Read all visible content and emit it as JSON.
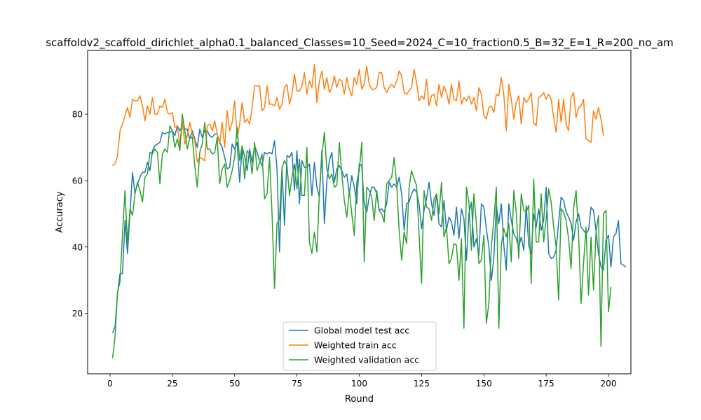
{
  "chart_data": {
    "type": "line",
    "title": "scaffoldv2_scaffold_dirichlet_alpha0.1_balanced_Classes=10_Seed=2024_C=10_fraction0.5_B=32_E=1_R=200_no_am",
    "xlabel": "Round",
    "ylabel": "Accuracy",
    "xlim": [
      -9,
      209
    ],
    "ylim": [
      1.8,
      99.2
    ],
    "xticks": [
      0,
      25,
      50,
      75,
      100,
      125,
      150,
      175,
      200
    ],
    "yticks": [
      20,
      40,
      60,
      80
    ],
    "grid": false,
    "legend_position": "lower-center",
    "x": {
      "start": 1,
      "end": 200
    },
    "series": [
      {
        "name": "Global model test acc",
        "color": "#1f77b4",
        "values": [
          14,
          16,
          26,
          32,
          32,
          48,
          38,
          50,
          62.5,
          56,
          59,
          61,
          62.5,
          62.5,
          65.5,
          63,
          69,
          70.5,
          71,
          71.5,
          74.5,
          74,
          74.5,
          74.5,
          75,
          73.5,
          76.5,
          75,
          76.5,
          75.5,
          75.5,
          72.5,
          75,
          72.5,
          70,
          75.5,
          73,
          75,
          75,
          73.5,
          73,
          74,
          74,
          71.5,
          70,
          67,
          63.5,
          64,
          71,
          69.5,
          71.5,
          59.5,
          70,
          67.5,
          63,
          69.5,
          65.5,
          70.5,
          68.5,
          66,
          64.5,
          68.5,
          68,
          68.5,
          68,
          72,
          63.5,
          38.5,
          63.5,
          46.5,
          67.5,
          67,
          68.5,
          57,
          69,
          53,
          66,
          64,
          64,
          65,
          55.5,
          65.5,
          58,
          55,
          69,
          47,
          60,
          66,
          68.5,
          59.5,
          63.5,
          64.5,
          63,
          61,
          62,
          56,
          61.5,
          58,
          53,
          65,
          64.5,
          53,
          50.5,
          55,
          58,
          58,
          56,
          51,
          51.5,
          50.5,
          53,
          59.5,
          58,
          59,
          58,
          61,
          56,
          45,
          53,
          53.5,
          56,
          57.5,
          56.5,
          53,
          45.5,
          51,
          54.5,
          59.5,
          53,
          49.5,
          56,
          47,
          46,
          54,
          45,
          49,
          47.5,
          43.5,
          52,
          42.5,
          51.5,
          48.5,
          36,
          50,
          53.5,
          40,
          42.5,
          37.5,
          53,
          52,
          45.5,
          40,
          30,
          36.5,
          52.5,
          47,
          53,
          40.5,
          33,
          53,
          48,
          44,
          42.5,
          40,
          43,
          39,
          52.5,
          40.5,
          38,
          50,
          46,
          51.5,
          45,
          48,
          58,
          38,
          36.5,
          37,
          39,
          47.5,
          55,
          54,
          50.5,
          49,
          47,
          42,
          47.5,
          50,
          46,
          45,
          44,
          45,
          52,
          51,
          45,
          38,
          34,
          33,
          42,
          43.5,
          34,
          43,
          44,
          48,
          35,
          34.5,
          34
        ]
      },
      {
        "name": "Weighted train acc",
        "color": "#ff7f0e",
        "values": [
          64.5,
          65,
          67.5,
          75,
          77,
          79.5,
          82,
          79,
          84.5,
          84,
          84,
          85.5,
          82.5,
          78,
          82.5,
          80,
          85,
          80,
          80,
          82.5,
          82,
          84.5,
          80.5,
          80,
          80.5,
          76,
          76.5,
          70.5,
          78,
          71,
          73.5,
          77.5,
          74,
          72,
          65.5,
          67,
          66.5,
          66,
          76.5,
          77,
          75,
          78,
          74,
          71,
          77.5,
          70,
          81,
          75,
          77.5,
          84,
          73,
          77,
          83.5,
          77.5,
          78.5,
          77,
          82,
          88.5,
          88.5,
          88.5,
          81,
          82,
          88.5,
          83,
          83,
          82.5,
          85,
          81.5,
          83,
          88,
          89,
          83,
          86,
          92,
          87,
          87,
          88.5,
          92.5,
          86,
          90,
          88,
          95,
          83.5,
          90,
          93,
          87.5,
          91,
          86.5,
          88,
          91.5,
          88,
          90.5,
          90,
          86,
          91,
          87.5,
          85.5,
          91,
          89,
          93.5,
          87.5,
          89,
          94.5,
          89,
          87.5,
          87.5,
          88,
          92.5,
          92.5,
          88,
          86.5,
          88,
          89,
          88,
          90,
          93,
          91.5,
          86.5,
          86,
          87,
          88,
          93.5,
          89.5,
          84,
          85.5,
          84.5,
          90.5,
          82.5,
          85.5,
          86,
          82.5,
          89,
          85,
          88.5,
          86.5,
          83,
          89,
          84.5,
          84,
          90,
          83,
          85,
          84,
          85.5,
          83,
          85,
          81,
          88,
          86,
          79.5,
          78.5,
          82,
          82.5,
          80.5,
          86,
          85.5,
          91,
          86,
          75,
          89,
          84.5,
          78.5,
          83.5,
          85.5,
          77,
          85,
          83.5,
          84.5,
          86.5,
          77.5,
          76.5,
          85,
          85.5,
          86.5,
          84.5,
          86,
          84.5,
          79,
          74.5,
          84.5,
          77.5,
          84.5,
          77,
          75,
          85,
          86.5,
          79,
          82,
          82.5,
          84.5,
          72.5,
          72,
          71.5,
          81,
          78.5,
          82,
          78.5,
          73.5
        ]
      },
      {
        "name": "Weighted validation acc",
        "color": "#2ca02c",
        "values": [
          6.5,
          13,
          26.5,
          29.5,
          44,
          57,
          41,
          51.5,
          49.5,
          56,
          59.5,
          57,
          53.5,
          61,
          62,
          68.5,
          68,
          69.5,
          68.5,
          59,
          68,
          69.5,
          68.5,
          76.5,
          75,
          70,
          72.5,
          69,
          80,
          75,
          69.5,
          73,
          73,
          64.5,
          58,
          68.5,
          71,
          77.5,
          69.5,
          69.5,
          68,
          68.5,
          73,
          59,
          63.5,
          65,
          58,
          60,
          63,
          67,
          76,
          66,
          70.5,
          60.5,
          69,
          68,
          62,
          71.5,
          63,
          65.5,
          68,
          54.5,
          56,
          67,
          50,
          27.5,
          47,
          48.5,
          64,
          66,
          64.5,
          55.5,
          61,
          65,
          57.5,
          66.5,
          55.5,
          55.5,
          70,
          41.5,
          38,
          44.5,
          38.5,
          56,
          67.5,
          74.5,
          63.5,
          60.5,
          62,
          58,
          58.5,
          71.5,
          62,
          54,
          49,
          57,
          50,
          43.5,
          59.5,
          63,
          71.5,
          35.5,
          58,
          57,
          55,
          48,
          57,
          51,
          50,
          47.5,
          59,
          60,
          61,
          67,
          59,
          45,
          36,
          44.5,
          41,
          58,
          63,
          60.5,
          58.5,
          44,
          29,
          57,
          52,
          51.5,
          48,
          54.5,
          56,
          50,
          59.5,
          43,
          46,
          35,
          36.5,
          41,
          40.5,
          30,
          42.5,
          15.5,
          58,
          53.5,
          39,
          56,
          47,
          35,
          36,
          43.5,
          17,
          23,
          40,
          48,
          58,
          15.5,
          40.5,
          45.5,
          43,
          47,
          35.5,
          57,
          50.5,
          36.5,
          56,
          51,
          50.5,
          52.5,
          29,
          60.5,
          41.5,
          41.5,
          56,
          41.5,
          48.5,
          57.5,
          53.5,
          46,
          40,
          24,
          51.5,
          50.5,
          48,
          42.5,
          33.5,
          51.5,
          57,
          44,
          23,
          35,
          46,
          25.5,
          43,
          27,
          44.5,
          49.5,
          10,
          50,
          51,
          20.5,
          28
        ]
      }
    ]
  }
}
